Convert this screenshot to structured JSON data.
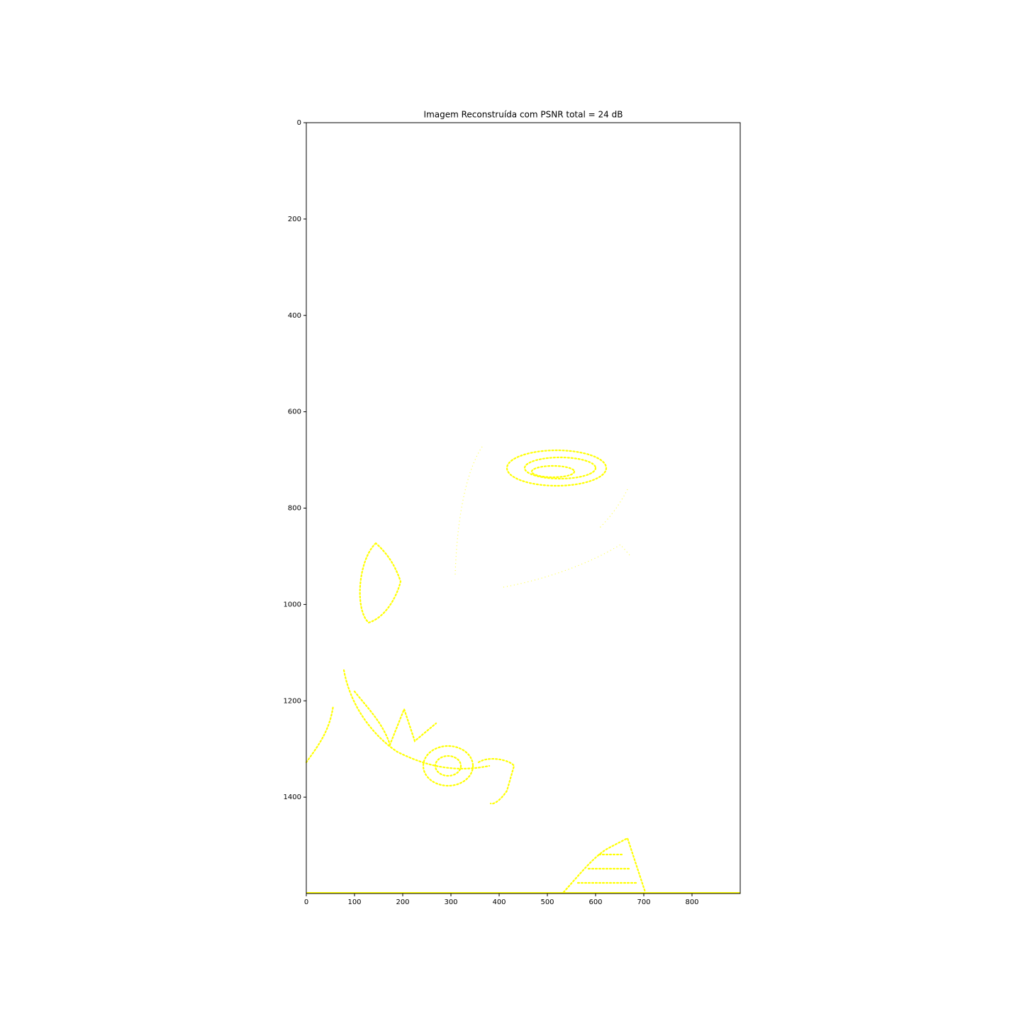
{
  "chart_data": {
    "type": "image",
    "title": "Imagem Reconstruída com PSNR total = 24 dB",
    "xlim": [
      0,
      900
    ],
    "ylim": [
      1600,
      0
    ],
    "xticks": [
      0,
      100,
      200,
      300,
      400,
      500,
      600,
      700,
      800
    ],
    "yticks": [
      0,
      200,
      400,
      600,
      800,
      1000,
      1200,
      1400
    ]
  }
}
